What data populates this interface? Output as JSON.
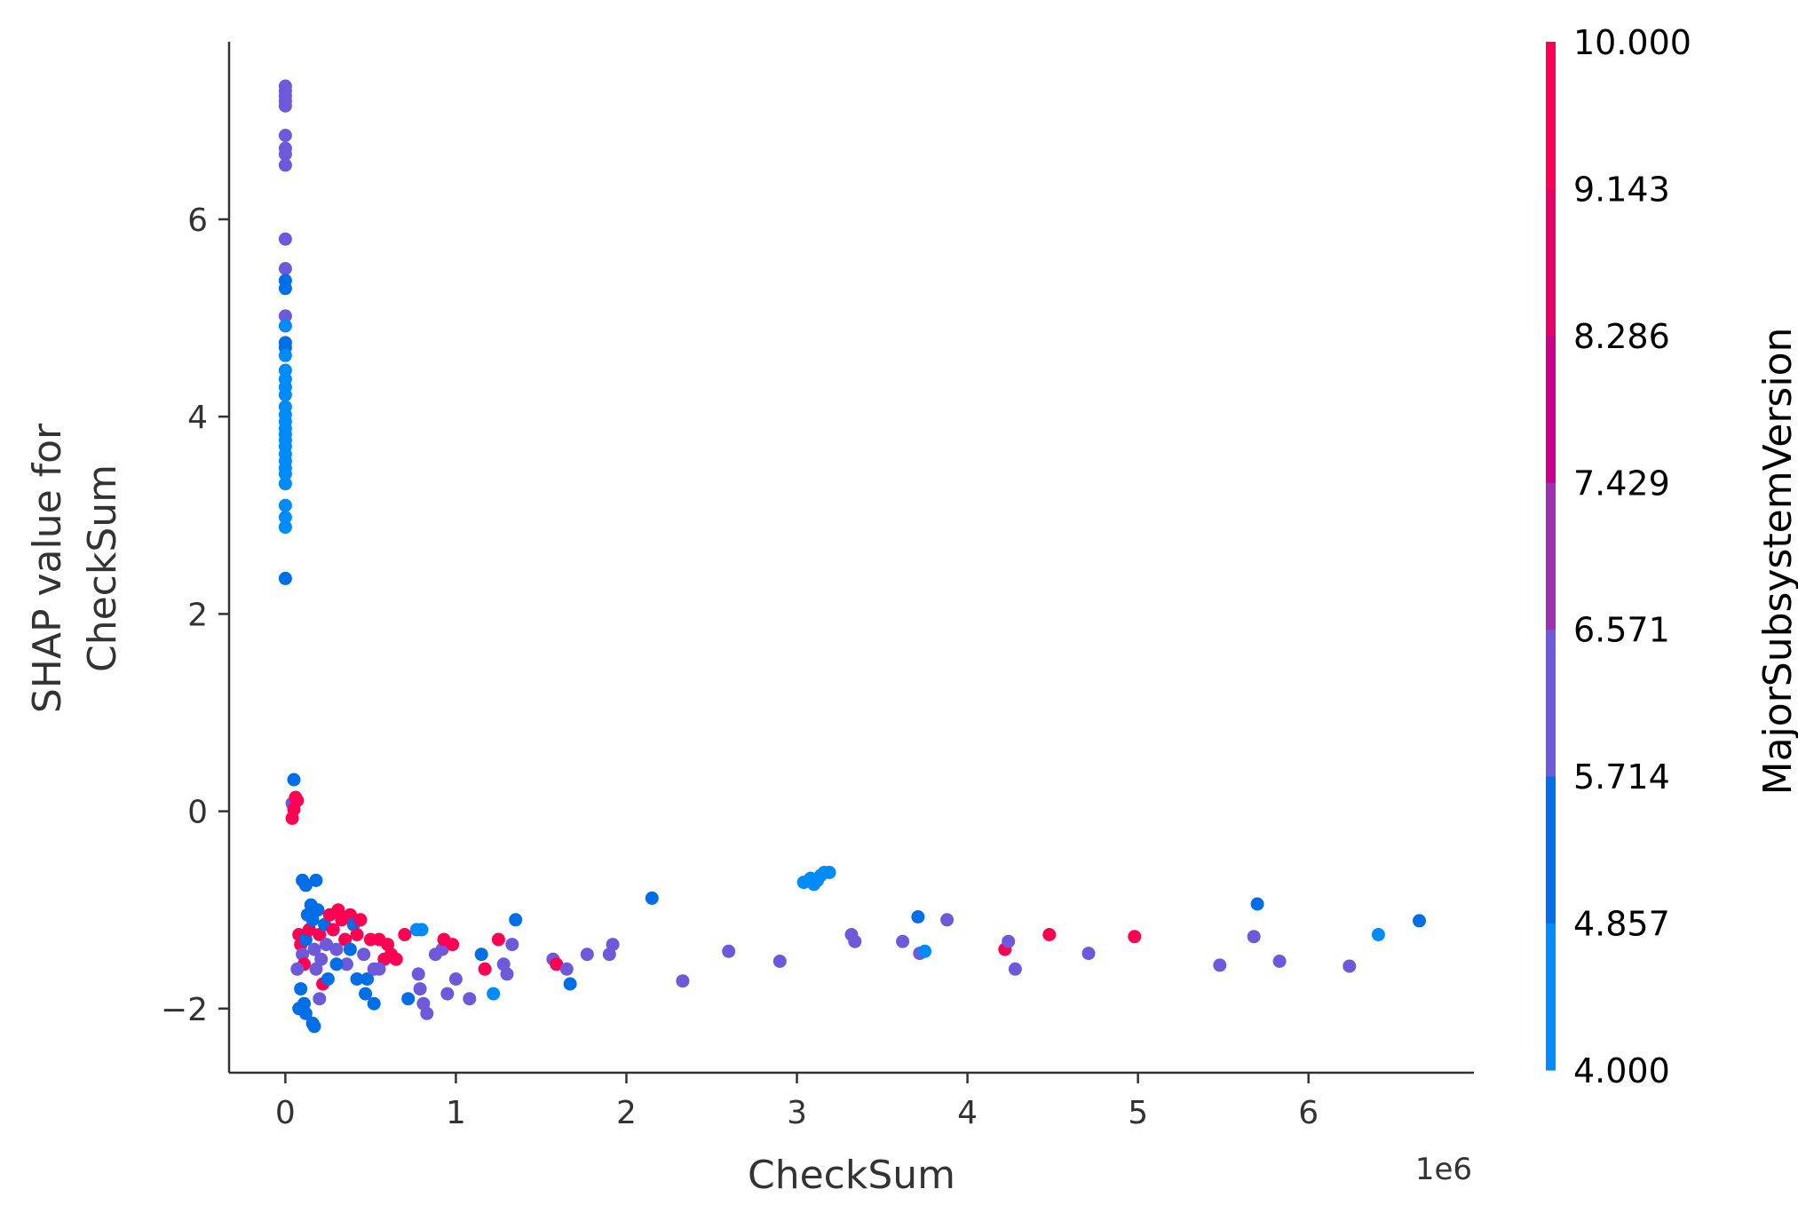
{
  "chart_data": {
    "type": "scatter",
    "xlabel": "CheckSum",
    "x_offset_label": "1e6",
    "ylabel_lines": [
      "SHAP value for",
      "CheckSum"
    ],
    "xlim": [
      -0.33,
      6.97
    ],
    "ylim": [
      -2.65,
      7.8
    ],
    "x_ticks": [
      {
        "value": 0,
        "label": "0"
      },
      {
        "value": 1,
        "label": "1"
      },
      {
        "value": 2,
        "label": "2"
      },
      {
        "value": 3,
        "label": "3"
      },
      {
        "value": 4,
        "label": "4"
      },
      {
        "value": 5,
        "label": "5"
      },
      {
        "value": 6,
        "label": "6"
      }
    ],
    "y_ticks": [
      {
        "value": -2,
        "label": "−2"
      },
      {
        "value": 0,
        "label": "0"
      },
      {
        "value": 2,
        "label": "2"
      },
      {
        "value": 4,
        "label": "4"
      },
      {
        "value": 6,
        "label": "6"
      }
    ],
    "colorbar": {
      "title": "MajorSubsystemVersion",
      "min": 4.0,
      "max": 10.0,
      "ticks": [
        "10.000",
        "9.143",
        "8.286",
        "7.429",
        "6.571",
        "5.714",
        "4.857",
        "4.000"
      ],
      "bands": [
        "#008bfb",
        "#006ee6",
        "#6f59db",
        "#9b30b0",
        "#c8008c",
        "#e80068",
        "#ff0052"
      ]
    },
    "series_color_scale": {
      "4": "#008bfb",
      "5": "#006ee6",
      "6": "#6f59db",
      "7": "#9b30b0",
      "10": "#ff0052"
    },
    "points": [
      [
        0.0,
        7.35,
        6
      ],
      [
        0.0,
        7.3,
        6
      ],
      [
        0.0,
        7.25,
        6
      ],
      [
        0.0,
        7.2,
        6
      ],
      [
        0.0,
        7.15,
        6
      ],
      [
        0.0,
        6.85,
        6
      ],
      [
        0.0,
        6.72,
        6
      ],
      [
        0.0,
        6.66,
        6
      ],
      [
        0.0,
        6.55,
        6
      ],
      [
        0.0,
        5.8,
        6
      ],
      [
        0.0,
        5.5,
        6
      ],
      [
        0.0,
        5.38,
        5
      ],
      [
        0.0,
        5.3,
        5
      ],
      [
        0.0,
        5.02,
        6
      ],
      [
        0.0,
        4.92,
        4
      ],
      [
        0.0,
        4.75,
        5
      ],
      [
        0.0,
        4.7,
        5
      ],
      [
        0.0,
        4.62,
        4
      ],
      [
        0.0,
        4.47,
        4
      ],
      [
        0.0,
        4.38,
        4
      ],
      [
        0.0,
        4.3,
        4
      ],
      [
        0.0,
        4.22,
        4
      ],
      [
        0.0,
        4.1,
        4
      ],
      [
        0.0,
        4.02,
        4
      ],
      [
        0.0,
        3.95,
        4
      ],
      [
        0.0,
        3.88,
        4
      ],
      [
        0.0,
        3.82,
        4
      ],
      [
        0.0,
        3.76,
        4
      ],
      [
        0.0,
        3.7,
        4
      ],
      [
        0.0,
        3.62,
        4
      ],
      [
        0.0,
        3.55,
        4
      ],
      [
        0.0,
        3.48,
        4
      ],
      [
        0.0,
        3.42,
        4
      ],
      [
        0.0,
        3.32,
        4
      ],
      [
        0.0,
        3.1,
        4
      ],
      [
        0.0,
        2.98,
        4
      ],
      [
        0.0,
        2.88,
        4
      ],
      [
        0.0,
        2.36,
        5
      ],
      [
        0.05,
        0.32,
        5
      ],
      [
        0.04,
        0.08,
        6
      ],
      [
        0.06,
        0.14,
        10
      ],
      [
        0.07,
        0.11,
        10
      ],
      [
        0.05,
        0.02,
        10
      ],
      [
        0.04,
        -0.07,
        10
      ],
      [
        0.1,
        -0.7,
        5
      ],
      [
        0.12,
        -0.75,
        5
      ],
      [
        0.18,
        -0.7,
        5
      ],
      [
        0.08,
        -1.25,
        10
      ],
      [
        0.09,
        -1.35,
        10
      ],
      [
        0.1,
        -1.45,
        6
      ],
      [
        0.11,
        -1.55,
        10
      ],
      [
        0.12,
        -1.3,
        5
      ],
      [
        0.13,
        -1.05,
        5
      ],
      [
        0.14,
        -1.2,
        10
      ],
      [
        0.15,
        -0.95,
        5
      ],
      [
        0.16,
        -1.1,
        5
      ],
      [
        0.17,
        -1.4,
        6
      ],
      [
        0.18,
        -1.6,
        6
      ],
      [
        0.19,
        -1.0,
        5
      ],
      [
        0.2,
        -1.25,
        10
      ],
      [
        0.21,
        -1.5,
        6
      ],
      [
        0.22,
        -1.75,
        10
      ],
      [
        0.23,
        -1.15,
        5
      ],
      [
        0.24,
        -1.35,
        6
      ],
      [
        0.26,
        -1.05,
        10
      ],
      [
        0.28,
        -1.2,
        10
      ],
      [
        0.3,
        -1.4,
        6
      ],
      [
        0.31,
        -1.0,
        10
      ],
      [
        0.33,
        -1.1,
        10
      ],
      [
        0.35,
        -1.3,
        10
      ],
      [
        0.36,
        -1.55,
        6
      ],
      [
        0.38,
        -1.05,
        10
      ],
      [
        0.4,
        -1.15,
        5
      ],
      [
        0.42,
        -1.25,
        10
      ],
      [
        0.44,
        -1.1,
        10
      ],
      [
        0.46,
        -1.45,
        6
      ],
      [
        0.48,
        -1.7,
        5
      ],
      [
        0.5,
        -1.3,
        10
      ],
      [
        0.52,
        -1.6,
        6
      ],
      [
        0.55,
        -1.3,
        10
      ],
      [
        0.58,
        -1.5,
        10
      ],
      [
        0.6,
        -1.35,
        10
      ],
      [
        0.62,
        -1.45,
        10
      ],
      [
        0.65,
        -1.5,
        10
      ],
      [
        0.07,
        -1.6,
        6
      ],
      [
        0.09,
        -1.8,
        5
      ],
      [
        0.11,
        -1.95,
        5
      ],
      [
        0.08,
        -2.0,
        5
      ],
      [
        0.12,
        -2.05,
        5
      ],
      [
        0.16,
        -2.15,
        5
      ],
      [
        0.17,
        -2.18,
        5
      ],
      [
        0.2,
        -1.9,
        6
      ],
      [
        0.25,
        -1.7,
        5
      ],
      [
        0.3,
        -1.55,
        5
      ],
      [
        0.38,
        -1.4,
        5
      ],
      [
        0.42,
        -1.7,
        5
      ],
      [
        0.47,
        -1.85,
        5
      ],
      [
        0.52,
        -1.95,
        5
      ],
      [
        0.55,
        -1.6,
        6
      ],
      [
        0.7,
        -1.25,
        10
      ],
      [
        0.72,
        -1.9,
        5
      ],
      [
        0.77,
        -1.2,
        4
      ],
      [
        0.78,
        -1.65,
        6
      ],
      [
        0.79,
        -1.8,
        6
      ],
      [
        0.81,
        -1.95,
        6
      ],
      [
        0.83,
        -2.05,
        6
      ],
      [
        0.8,
        -1.2,
        4
      ],
      [
        0.88,
        -1.45,
        6
      ],
      [
        0.92,
        -1.4,
        6
      ],
      [
        0.93,
        -1.3,
        10
      ],
      [
        0.95,
        -1.85,
        6
      ],
      [
        0.98,
        -1.35,
        10
      ],
      [
        1.0,
        -1.7,
        6
      ],
      [
        1.08,
        -1.9,
        6
      ],
      [
        1.15,
        -1.45,
        5
      ],
      [
        1.17,
        -1.6,
        10
      ],
      [
        1.22,
        -1.85,
        4
      ],
      [
        1.25,
        -1.3,
        10
      ],
      [
        1.28,
        -1.55,
        6
      ],
      [
        1.3,
        -1.65,
        6
      ],
      [
        1.33,
        -1.35,
        6
      ],
      [
        1.35,
        -1.1,
        5
      ],
      [
        1.57,
        -1.5,
        6
      ],
      [
        1.59,
        -1.55,
        10
      ],
      [
        1.65,
        -1.6,
        6
      ],
      [
        1.67,
        -1.75,
        5
      ],
      [
        1.77,
        -1.45,
        6
      ],
      [
        1.9,
        -1.45,
        6
      ],
      [
        1.92,
        -1.35,
        6
      ],
      [
        2.15,
        -0.88,
        5
      ],
      [
        2.33,
        -1.72,
        6
      ],
      [
        2.6,
        -1.42,
        6
      ],
      [
        2.9,
        -1.52,
        6
      ],
      [
        3.04,
        -0.72,
        4
      ],
      [
        3.08,
        -0.68,
        4
      ],
      [
        3.1,
        -0.74,
        4
      ],
      [
        3.12,
        -0.7,
        4
      ],
      [
        3.14,
        -0.65,
        4
      ],
      [
        3.16,
        -0.62,
        4
      ],
      [
        3.19,
        -0.62,
        4
      ],
      [
        3.32,
        -1.25,
        6
      ],
      [
        3.34,
        -1.32,
        6
      ],
      [
        3.62,
        -1.32,
        6
      ],
      [
        3.71,
        -1.07,
        5
      ],
      [
        3.72,
        -1.44,
        6
      ],
      [
        3.75,
        -1.42,
        4
      ],
      [
        3.88,
        -1.1,
        6
      ],
      [
        4.22,
        -1.4,
        10
      ],
      [
        4.24,
        -1.32,
        6
      ],
      [
        4.28,
        -1.6,
        6
      ],
      [
        4.48,
        -1.25,
        10
      ],
      [
        4.71,
        -1.44,
        6
      ],
      [
        4.98,
        -1.27,
        10
      ],
      [
        5.48,
        -1.56,
        6
      ],
      [
        5.68,
        -1.27,
        6
      ],
      [
        5.7,
        -0.94,
        5
      ],
      [
        5.83,
        -1.52,
        6
      ],
      [
        6.24,
        -1.57,
        6
      ],
      [
        6.41,
        -1.25,
        4
      ],
      [
        6.65,
        -1.11,
        5
      ]
    ]
  }
}
